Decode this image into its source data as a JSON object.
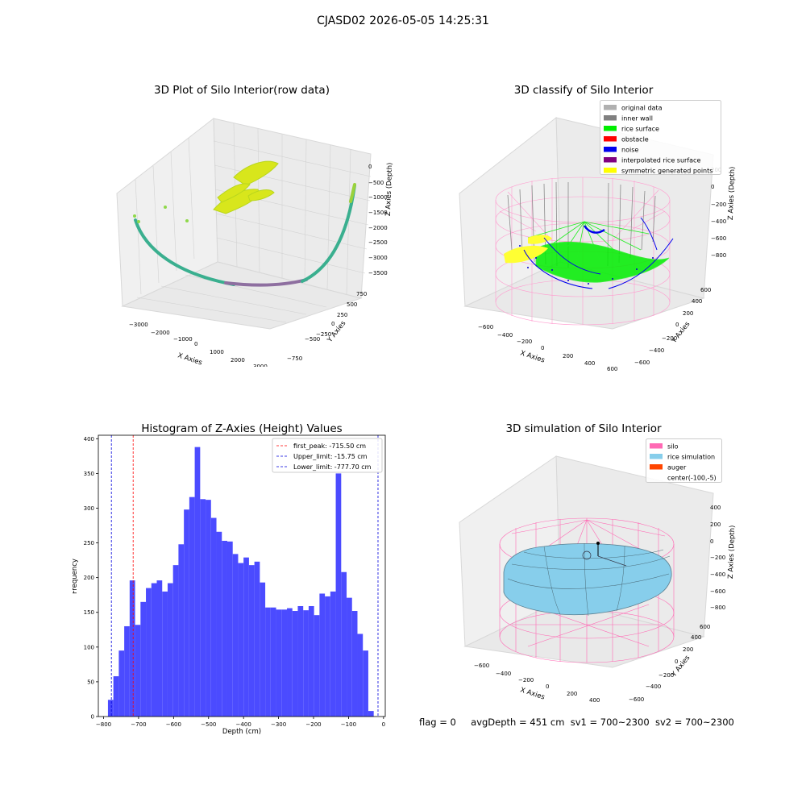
{
  "figure": {
    "suptitle": "CJASD02 2026-05-05 14:25:31",
    "footer": {
      "flag": "flag = 0",
      "avg": "avgDepth = 451 cm",
      "sv1": "sv1 = 700~2300",
      "sv2": "sv2 = 700~2300"
    }
  },
  "chart_data": [
    {
      "type": "scatter",
      "projection": "3d",
      "title": "3D Plot of Silo Interior(row data)",
      "xlabel": "X Axies",
      "ylabel": "Y Axies",
      "zlabel": "Z Axies (Depth)",
      "x_ticks": [
        "−3000",
        "−2000",
        "−1000",
        "0",
        "1000",
        "2000",
        "3000"
      ],
      "y_ticks": [
        "−750",
        "−500",
        "−250",
        "0",
        "250",
        "500",
        "750"
      ],
      "z_ticks": [
        "0",
        "−500",
        "−1000",
        "−1500",
        "−2000",
        "−2500",
        "−3000",
        "−3500"
      ],
      "colors": {
        "arc_low": "#8e6fa0",
        "arc_mid": "#3aaf8f",
        "arc_high": "#9ad23c",
        "cluster": "#d8e61c"
      }
    },
    {
      "type": "scatter",
      "projection": "3d",
      "title": "3D classify of Silo Interior",
      "xlabel": "X Axies",
      "ylabel": "Y Axies",
      "zlabel": "Z Axies (Depth)",
      "x_ticks": [
        "−600",
        "−400",
        "−200",
        "0",
        "200",
        "400",
        "600"
      ],
      "y_ticks": [
        "−600",
        "−400",
        "−200",
        "0",
        "200",
        "400",
        "600"
      ],
      "z_ticks": [
        "200",
        "0",
        "−200",
        "−400",
        "−600",
        "−800"
      ],
      "legend": {
        "location": "upper right",
        "entries": [
          {
            "label": "original data",
            "color": "#b0b0b0"
          },
          {
            "label": "inner wall",
            "color": "#808080"
          },
          {
            "label": "rice surface",
            "color": "#00ee00"
          },
          {
            "label": "obstacle",
            "color": "#ff0000"
          },
          {
            "label": "noise",
            "color": "#0000ee"
          },
          {
            "label": "interpolated rice surface",
            "color": "#800080"
          },
          {
            "label": "symmetric generated points",
            "color": "#ffff00"
          }
        ]
      },
      "cylinder_color": "#ff9ccf"
    },
    {
      "type": "bar",
      "title": "Histogram of Z-Axies (Height) Values",
      "xlabel": "Depth (cm)",
      "ylabel": "Frequency",
      "xlim": [
        -815,
        5
      ],
      "ylim": [
        0,
        405
      ],
      "x_ticks": [
        -800,
        -700,
        -600,
        -500,
        -400,
        -300,
        -200,
        -100,
        0
      ],
      "y_ticks": [
        0,
        50,
        100,
        150,
        200,
        250,
        300,
        350,
        400
      ],
      "bar_color": "#4b4bff",
      "bins": {
        "start": -787.5,
        "width": 15.5,
        "counts": [
          24,
          58,
          95,
          130,
          196,
          132,
          165,
          185,
          192,
          196,
          180,
          192,
          218,
          248,
          298,
          316,
          388,
          313,
          312,
          286,
          266,
          253,
          252,
          234,
          221,
          229,
          218,
          223,
          193,
          157,
          157,
          154,
          154,
          156,
          152,
          159,
          153,
          159,
          146,
          177,
          173,
          180,
          350,
          208,
          171,
          152,
          119,
          95,
          8
        ]
      },
      "vlines": [
        {
          "x": -715.5,
          "label": "first_peak: -715.50 cm",
          "color": "#ff0000"
        },
        {
          "x": -15.75,
          "label": "Upper_limit: -15.75 cm",
          "color": "#0000dd"
        },
        {
          "x": -777.7,
          "label": "Lower_limit: -777.70 cm",
          "color": "#0000dd"
        }
      ],
      "legend": {
        "location": "upper right"
      }
    },
    {
      "type": "surface",
      "projection": "3d",
      "title": "3D simulation of Silo Interior",
      "xlabel": "X Axies",
      "ylabel": "Y Axies",
      "zlabel": "Z Axies (Depth)",
      "x_ticks": [
        "−600",
        "−400",
        "−200",
        "0",
        "200",
        "400"
      ],
      "y_ticks": [
        "−600",
        "−400",
        "−200",
        "0",
        "200",
        "400",
        "600"
      ],
      "z_ticks": [
        "400",
        "200",
        "0",
        "−200",
        "−400",
        "−600",
        "−800"
      ],
      "legend": {
        "location": "upper right",
        "entries": [
          {
            "label": "silo",
            "color": "#ff69b4"
          },
          {
            "label": "rice simulation",
            "color": "#87ceeb"
          },
          {
            "label": "auger",
            "color": "#ff4500"
          },
          {
            "label": "center(-100,-5)",
            "color": ""
          }
        ]
      }
    }
  ]
}
